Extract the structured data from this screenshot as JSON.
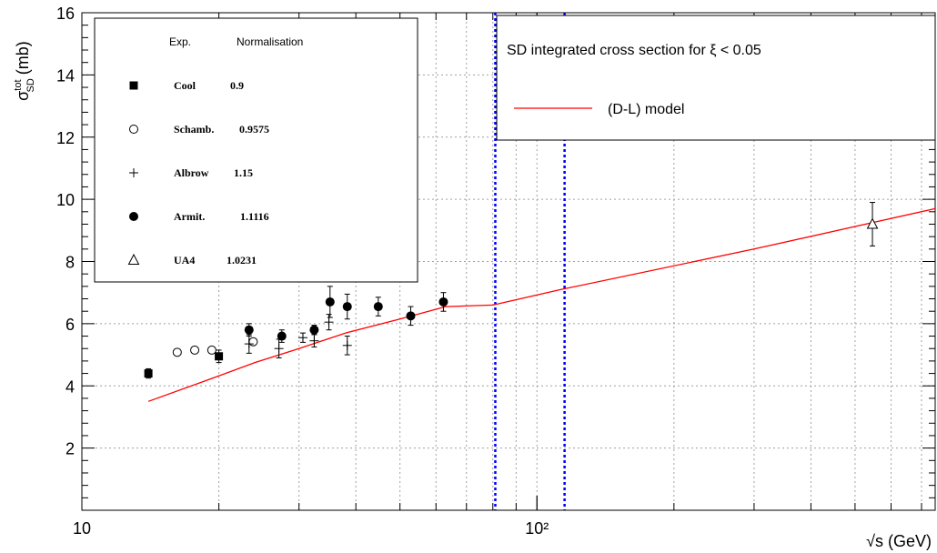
{
  "chart_data": {
    "type": "scatter",
    "title": "",
    "xlabel": "√s (GeV)",
    "ylabel_main": "σ",
    "ylabel_sup": "tot",
    "ylabel_sub": "SD",
    "ylabel_unit": "(mb)",
    "x_scale": "log",
    "xlim": [
      10,
      750
    ],
    "ylim": [
      0,
      16
    ],
    "grid": true,
    "x_ticks": [
      {
        "value": 10,
        "label": "10"
      },
      {
        "value": 100,
        "label": "10²"
      }
    ],
    "y_ticks": [
      {
        "value": 2,
        "label": "2"
      },
      {
        "value": 4,
        "label": "4"
      },
      {
        "value": 6,
        "label": "6"
      },
      {
        "value": 8,
        "label": "8"
      },
      {
        "value": 10,
        "label": "10"
      },
      {
        "value": 12,
        "label": "12"
      },
      {
        "value": 14,
        "label": "14"
      },
      {
        "value": 16,
        "label": "16"
      }
    ],
    "series": [
      {
        "name": "Cool",
        "marker": "filled-square",
        "points": [
          {
            "x": 14,
            "y": 4.4,
            "err": 0.15
          },
          {
            "x": 20,
            "y": 4.95,
            "err": 0.2
          }
        ]
      },
      {
        "name": "Schamb.",
        "marker": "open-circle",
        "points": [
          {
            "x": 16.2,
            "y": 5.08,
            "err": 0
          },
          {
            "x": 17.7,
            "y": 5.15,
            "err": 0
          },
          {
            "x": 19.3,
            "y": 5.15,
            "err": 0
          },
          {
            "x": 23.8,
            "y": 5.42,
            "err": 0
          }
        ]
      },
      {
        "name": "Albrow",
        "marker": "cross",
        "points": [
          {
            "x": 23.3,
            "y": 5.35,
            "err": 0.3
          },
          {
            "x": 27.1,
            "y": 5.2,
            "err": 0.3
          },
          {
            "x": 30.6,
            "y": 5.55,
            "err": 0.15
          },
          {
            "x": 32.4,
            "y": 5.45,
            "err": 0.2
          },
          {
            "x": 34.9,
            "y": 6.05,
            "err": 0.25
          },
          {
            "x": 38.3,
            "y": 5.3,
            "err": 0.3
          }
        ]
      },
      {
        "name": "Armit.",
        "marker": "filled-circle",
        "points": [
          {
            "x": 23.3,
            "y": 5.8,
            "err": 0.2
          },
          {
            "x": 27.5,
            "y": 5.6,
            "err": 0.2
          },
          {
            "x": 32.4,
            "y": 5.8,
            "err": 0.15
          },
          {
            "x": 35.1,
            "y": 6.7,
            "err": 0.5
          },
          {
            "x": 38.3,
            "y": 6.55,
            "err": 0.4
          },
          {
            "x": 44.8,
            "y": 6.55,
            "err": 0.3
          },
          {
            "x": 52.8,
            "y": 6.25,
            "err": 0.3
          },
          {
            "x": 62.3,
            "y": 6.7,
            "err": 0.3
          }
        ]
      },
      {
        "name": "UA4",
        "marker": "open-triangle",
        "points": [
          {
            "x": 546,
            "y": 9.2,
            "err": 0.7
          }
        ]
      }
    ],
    "model_curve": {
      "name": "(D-L) model",
      "color": "#ff0000",
      "points": [
        {
          "x": 14,
          "y": 3.5
        },
        {
          "x": 19,
          "y": 4.2
        },
        {
          "x": 24,
          "y": 4.75
        },
        {
          "x": 30,
          "y": 5.2
        },
        {
          "x": 38,
          "y": 5.7
        },
        {
          "x": 50,
          "y": 6.15
        },
        {
          "x": 63,
          "y": 6.55
        },
        {
          "x": 80,
          "y": 6.6
        },
        {
          "x": 113,
          "y": 7.1
        },
        {
          "x": 300,
          "y": 8.4
        },
        {
          "x": 750,
          "y": 9.7
        }
      ]
    },
    "vertical_lines": [
      {
        "x": 81,
        "color": "#0000ff"
      },
      {
        "x": 115,
        "color": "#0000ff"
      }
    ],
    "legend_left": {
      "header_exp": "Exp.",
      "header_norm": "Normalisation",
      "entries": [
        {
          "marker": "filled-square",
          "label": "Cool",
          "norm": "0.9"
        },
        {
          "marker": "open-circle",
          "label": "Schamb.",
          "norm": "0.9575"
        },
        {
          "marker": "cross",
          "label": "Albrow",
          "norm": "1.15"
        },
        {
          "marker": "filled-circle",
          "label": "Armit.",
          "norm": "1.1116"
        },
        {
          "marker": "open-triangle",
          "label": "UA4",
          "norm": "1.0231"
        }
      ]
    },
    "legend_right": {
      "heading": "SD integrated cross section for ξ < 0.05",
      "entry_label": "(D-L) model"
    }
  }
}
